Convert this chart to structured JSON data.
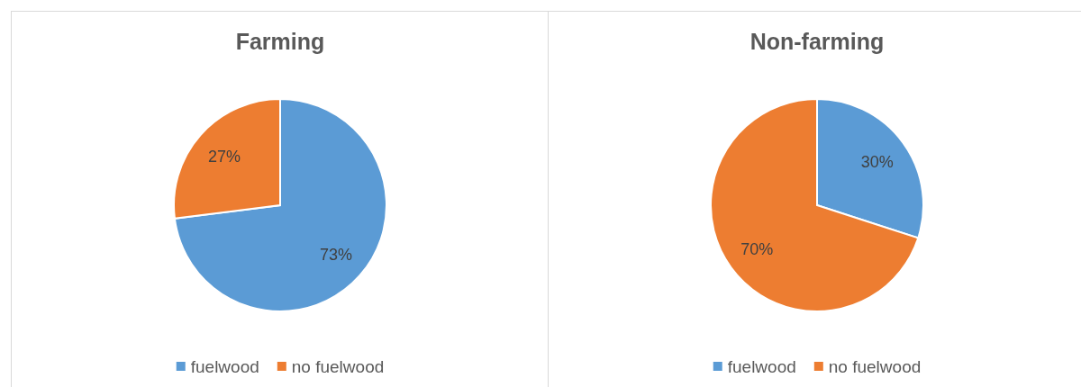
{
  "chart_data": [
    {
      "type": "pie",
      "title": "Farming",
      "categories": [
        "fuelwood",
        "no fuelwood"
      ],
      "values": [
        73,
        27
      ],
      "colors": [
        "#5b9bd5",
        "#ed7d31"
      ],
      "value_labels": [
        "73%",
        "27%"
      ],
      "legend": "bottom"
    },
    {
      "type": "pie",
      "title": "Non-farming",
      "categories": [
        "fuelwood",
        "no fuelwood"
      ],
      "values": [
        30,
        70
      ],
      "colors": [
        "#5b9bd5",
        "#ed7d31"
      ],
      "value_labels": [
        "30%",
        "70%"
      ],
      "legend": "bottom"
    }
  ]
}
